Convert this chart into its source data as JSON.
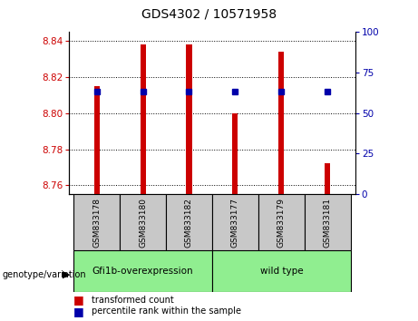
{
  "title": "GDS4302 / 10571958",
  "samples": [
    "GSM833178",
    "GSM833180",
    "GSM833182",
    "GSM833177",
    "GSM833179",
    "GSM833181"
  ],
  "bar_tops": [
    8.815,
    8.838,
    8.838,
    8.8,
    8.834,
    8.772
  ],
  "bar_bottom": 8.755,
  "pct_y": [
    8.812,
    8.812,
    8.812,
    8.812,
    8.812,
    8.812
  ],
  "ylim": [
    8.755,
    8.845
  ],
  "y2lim": [
    0,
    100
  ],
  "yticks": [
    8.76,
    8.78,
    8.8,
    8.82,
    8.84
  ],
  "y2ticks": [
    0,
    25,
    50,
    75,
    100
  ],
  "group1_label": "Gfi1b-overexpression",
  "group2_label": "wild type",
  "group_color": "#90EE90",
  "sample_box_color": "#C8C8C8",
  "group_label": "genotype/variation",
  "bar_color": "#CC0000",
  "percentile_color": "#0000AA",
  "tick_color_left": "#CC0000",
  "tick_color_right": "#0000AA",
  "legend1": "transformed count",
  "legend2": "percentile rank within the sample",
  "bar_width": 0.12
}
